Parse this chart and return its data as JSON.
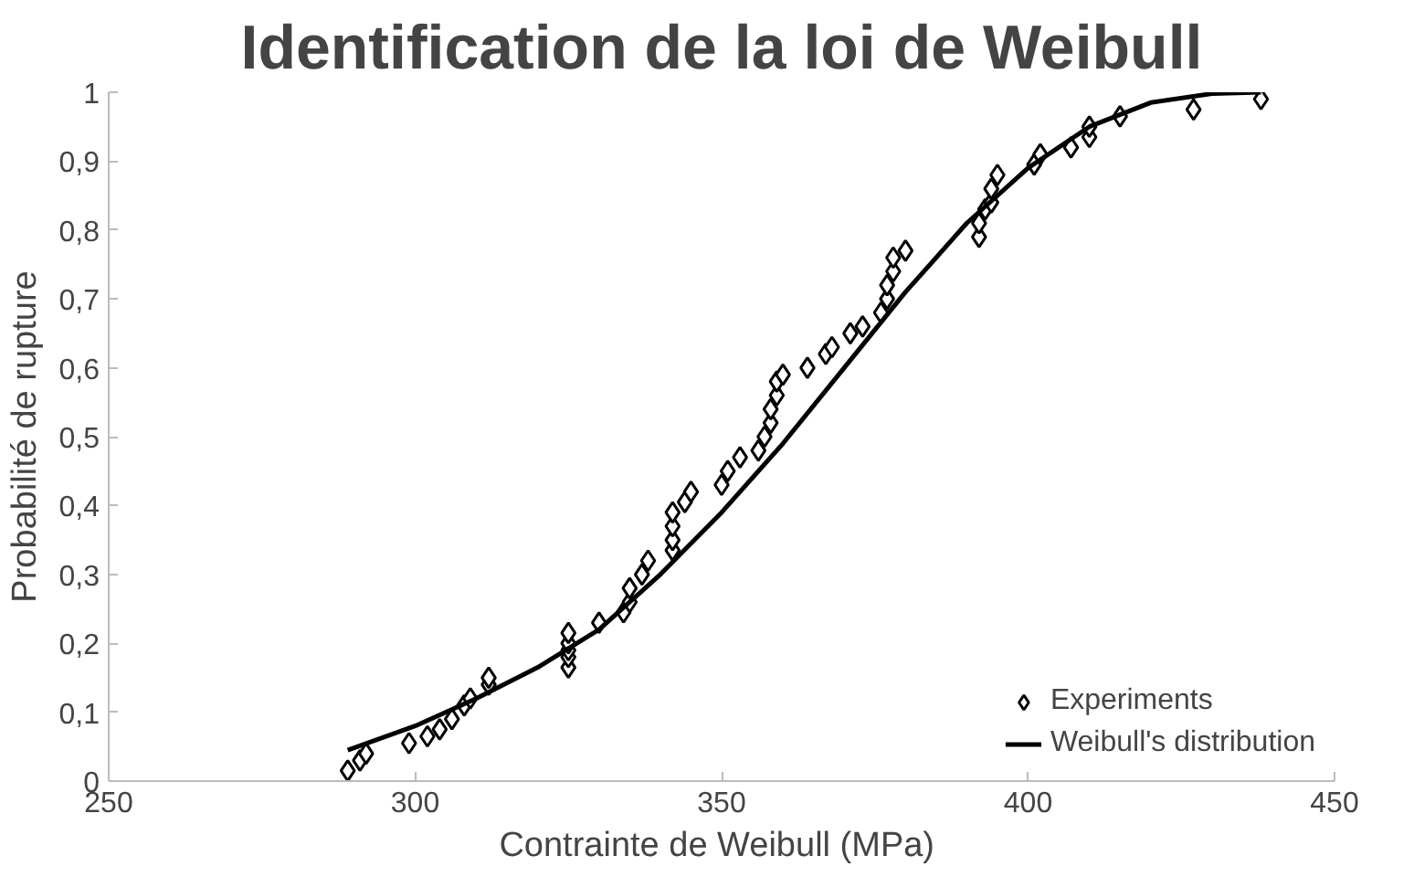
{
  "chart_data": {
    "type": "scatter",
    "title": "Identification de la loi de Weibull",
    "xlabel": "Contrainte de  Weibull (MPa)",
    "ylabel": "Probabilité de rupture",
    "xlim": [
      250,
      450
    ],
    "xticks": [
      250,
      300,
      350,
      400,
      450
    ],
    "ylim": [
      0,
      1
    ],
    "yticks": [
      0,
      {
        "value": 0.1,
        "label": "0,1"
      },
      {
        "value": 0.2,
        "label": "0,2"
      },
      {
        "value": 0.3,
        "label": "0,3"
      },
      {
        "value": 0.4,
        "label": "0,4"
      },
      {
        "value": 0.5,
        "label": "0,5"
      },
      {
        "value": 0.6,
        "label": "0,6"
      },
      {
        "value": 0.7,
        "label": "0,7"
      },
      {
        "value": 0.8,
        "label": "0,8"
      },
      {
        "value": 0.9,
        "label": "0,9"
      },
      1
    ],
    "grid": false,
    "legend": "bottom right",
    "series": [
      {
        "name": "Experiments",
        "marker": "diamond",
        "color": "#000000",
        "x": [
          289,
          291,
          292,
          299,
          302,
          304,
          306,
          308,
          309,
          312,
          312,
          325,
          325,
          325,
          325,
          325,
          330,
          334,
          335,
          335,
          337,
          338,
          342,
          342,
          342,
          342,
          344,
          345,
          350,
          351,
          353,
          356,
          357,
          358,
          358,
          359,
          359,
          360,
          364,
          367,
          368,
          371,
          373,
          376,
          377,
          377,
          378,
          378,
          380,
          392,
          392,
          393,
          394,
          394,
          395,
          401,
          402,
          407,
          410,
          410,
          415,
          427,
          438
        ],
        "values": [
          0.015,
          0.03,
          0.04,
          0.055,
          0.065,
          0.075,
          0.09,
          0.11,
          0.12,
          0.14,
          0.15,
          0.165,
          0.18,
          0.19,
          0.2,
          0.215,
          0.23,
          0.245,
          0.26,
          0.28,
          0.3,
          0.32,
          0.335,
          0.35,
          0.37,
          0.39,
          0.405,
          0.42,
          0.43,
          0.45,
          0.47,
          0.48,
          0.5,
          0.52,
          0.54,
          0.56,
          0.58,
          0.59,
          0.6,
          0.62,
          0.63,
          0.65,
          0.66,
          0.68,
          0.7,
          0.72,
          0.74,
          0.76,
          0.77,
          0.79,
          0.81,
          0.83,
          0.84,
          0.86,
          0.88,
          0.895,
          0.91,
          0.92,
          0.935,
          0.95,
          0.965,
          0.975,
          0.99
        ]
      },
      {
        "name": "Weibull's distribution",
        "type": "line",
        "line_style": "solid",
        "color": "#000000",
        "x": [
          289,
          300,
          310,
          320,
          330,
          340,
          350,
          360,
          370,
          380,
          390,
          400,
          410,
          420,
          430,
          438
        ],
        "values": [
          0.045,
          0.08,
          0.12,
          0.165,
          0.22,
          0.3,
          0.39,
          0.49,
          0.6,
          0.71,
          0.81,
          0.89,
          0.95,
          0.985,
          0.998,
          1.0
        ]
      }
    ]
  }
}
